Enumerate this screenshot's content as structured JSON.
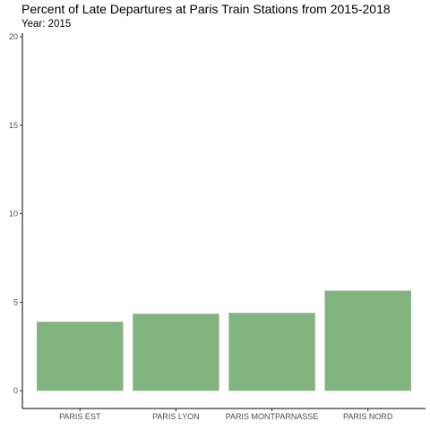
{
  "chart_data": {
    "type": "bar",
    "title": "Percent of Late Departures at Paris Train Stations from 2015-2018",
    "subtitle": "Year: 2015",
    "xlabel": "",
    "ylabel": "",
    "categories": [
      "PARIS EST",
      "PARIS LYON",
      "PARIS MONTPARNASSE",
      "PARIS NORD"
    ],
    "values": [
      3.9,
      4.35,
      4.4,
      5.65
    ],
    "ylim": [
      -1.0,
      20.2
    ],
    "yticks": [
      0,
      5,
      10,
      15,
      20
    ],
    "grid": false,
    "legend": "none",
    "bar_color": "#82b47f",
    "axis_color": "#000000",
    "tick_label_color": "#4d4d4d"
  }
}
